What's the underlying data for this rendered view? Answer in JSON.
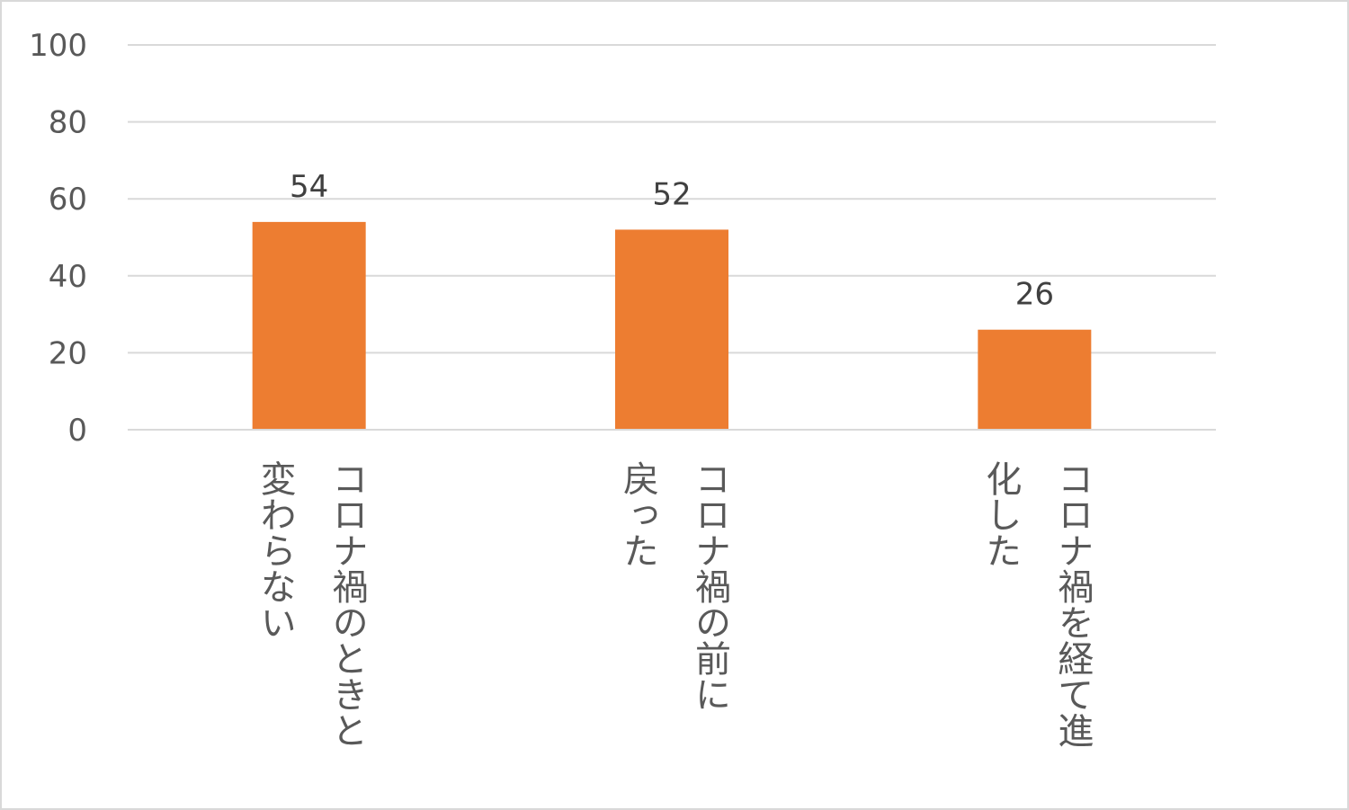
{
  "chart_data": {
    "type": "bar",
    "title": "",
    "xlabel": "",
    "ylabel": "",
    "ylim": [
      0,
      100
    ],
    "yticks": [
      0,
      20,
      40,
      60,
      80,
      100
    ],
    "grid": true,
    "legend": "none",
    "categories": [
      [
        "コロナ禍のときと",
        "変わらない"
      ],
      [
        "コロナ禍の前に",
        "戻った"
      ],
      [
        "コロナ禍を経て進",
        "化した"
      ]
    ],
    "values": [
      54,
      52,
      26
    ],
    "colors": {
      "bar": "#ed7d31",
      "grid": "#d9d9d9",
      "axis": "#d9d9d9"
    }
  }
}
